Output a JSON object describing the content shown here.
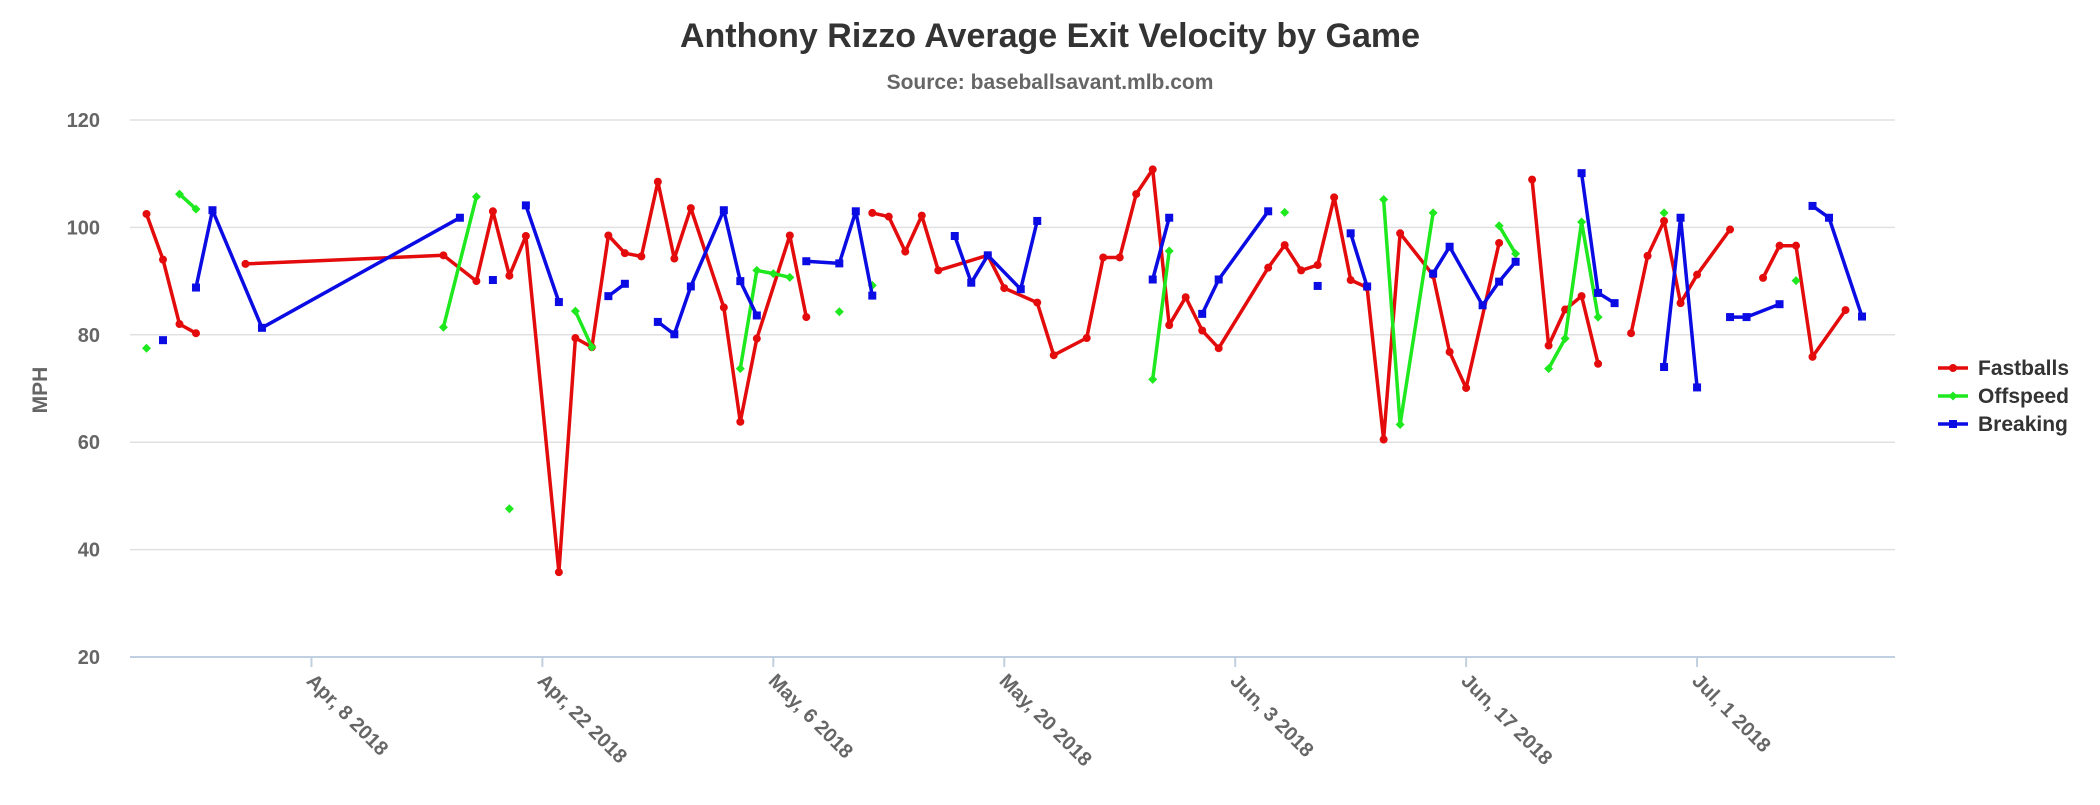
{
  "chart_data": {
    "type": "line",
    "title": "Anthony Rizzo Average Exit Velocity by Game",
    "subtitle": "Source: baseballsavant.mlb.com",
    "xlabel": "",
    "ylabel": "MPH",
    "ylim": [
      20,
      120
    ],
    "yticks": [
      20,
      40,
      60,
      80,
      100,
      120
    ],
    "xlim": [
      "2018-03-28",
      "2018-07-13"
    ],
    "xticks": [
      {
        "date": "2018-04-08",
        "label": "Apr, 8 2018"
      },
      {
        "date": "2018-04-22",
        "label": "Apr, 22 2018"
      },
      {
        "date": "2018-05-06",
        "label": "May, 6 2018"
      },
      {
        "date": "2018-05-20",
        "label": "May, 20 2018"
      },
      {
        "date": "2018-06-03",
        "label": "Jun, 3 2018"
      },
      {
        "date": "2018-06-17",
        "label": "Jun, 17 2018"
      },
      {
        "date": "2018-07-01",
        "label": "Jul, 1 2018"
      }
    ],
    "grid": true,
    "legend_position": "right",
    "series": [
      {
        "name": "Fastballs",
        "color": "#e30b0b",
        "marker": "circle",
        "points": [
          [
            "2018-03-29",
            102.5
          ],
          [
            "2018-03-30",
            94
          ],
          [
            "2018-03-31",
            82
          ],
          [
            "2018-04-01",
            80.3
          ],
          null,
          [
            "2018-04-04",
            93.2
          ],
          [
            "2018-04-16",
            94.8
          ],
          [
            "2018-04-18",
            90
          ],
          [
            "2018-04-19",
            103
          ],
          [
            "2018-04-20",
            91
          ],
          [
            "2018-04-21",
            98.4
          ],
          [
            "2018-04-23",
            35.8
          ],
          [
            "2018-04-24",
            79.4
          ],
          [
            "2018-04-25",
            77.7
          ],
          [
            "2018-04-26",
            98.5
          ],
          [
            "2018-04-27",
            95.2
          ],
          [
            "2018-04-28",
            94.6
          ],
          [
            "2018-04-29",
            108.5
          ],
          [
            "2018-04-30",
            94.2
          ],
          [
            "2018-05-01",
            103.6
          ],
          [
            "2018-05-03",
            85.1
          ],
          [
            "2018-05-04",
            63.8
          ],
          [
            "2018-05-05",
            79.3
          ],
          [
            "2018-05-07",
            98.5
          ],
          [
            "2018-05-08",
            83.3
          ],
          null,
          [
            "2018-05-12",
            102.7
          ],
          [
            "2018-05-13",
            102
          ],
          [
            "2018-05-14",
            95.5
          ],
          [
            "2018-05-15",
            102.2
          ],
          [
            "2018-05-16",
            92
          ],
          [
            "2018-05-19",
            94.8
          ],
          [
            "2018-05-20",
            88.7
          ],
          [
            "2018-05-22",
            86
          ],
          [
            "2018-05-23",
            76.2
          ],
          [
            "2018-05-25",
            79.4
          ],
          [
            "2018-05-26",
            94.4
          ],
          [
            "2018-05-27",
            94.4
          ],
          [
            "2018-05-28",
            106.2
          ],
          [
            "2018-05-29",
            110.8
          ],
          [
            "2018-05-30",
            81.8
          ],
          [
            "2018-05-31",
            87
          ],
          [
            "2018-06-01",
            80.8
          ],
          [
            "2018-06-02",
            77.5
          ],
          [
            "2018-06-05",
            92.5
          ],
          [
            "2018-06-06",
            96.7
          ],
          [
            "2018-06-07",
            92
          ],
          [
            "2018-06-08",
            93
          ],
          [
            "2018-06-09",
            105.6
          ],
          [
            "2018-06-10",
            90.2
          ],
          [
            "2018-06-11",
            88.8
          ],
          [
            "2018-06-12",
            60.5
          ],
          [
            "2018-06-13",
            98.9
          ],
          [
            "2018-06-15",
            91.1
          ],
          [
            "2018-06-16",
            76.8
          ],
          [
            "2018-06-17",
            70.1
          ],
          [
            "2018-06-19",
            97.1
          ],
          null,
          [
            "2018-06-21",
            108.9
          ],
          [
            "2018-06-22",
            78
          ],
          [
            "2018-06-23",
            84.7
          ],
          [
            "2018-06-24",
            87.2
          ],
          [
            "2018-06-25",
            74.6
          ],
          null,
          [
            "2018-06-27",
            80.3
          ],
          [
            "2018-06-28",
            94.7
          ],
          [
            "2018-06-29",
            101.2
          ],
          [
            "2018-06-30",
            85.9
          ],
          [
            "2018-07-01",
            91.2
          ],
          [
            "2018-07-03",
            99.6
          ],
          null,
          [
            "2018-07-05",
            90.6
          ],
          [
            "2018-07-06",
            96.6
          ],
          [
            "2018-07-07",
            96.6
          ],
          [
            "2018-07-08",
            75.9
          ],
          [
            "2018-07-10",
            84.6
          ]
        ]
      },
      {
        "name": "Offspeed",
        "color": "#1ee81e",
        "marker": "diamond",
        "points": [
          [
            "2018-03-29",
            77.5
          ],
          null,
          [
            "2018-03-31",
            106.2
          ],
          [
            "2018-04-01",
            103.4
          ],
          null,
          [
            "2018-04-16",
            81.4
          ],
          [
            "2018-04-18",
            105.7
          ],
          null,
          [
            "2018-04-20",
            47.6
          ],
          null,
          [
            "2018-04-24",
            84.4
          ],
          [
            "2018-04-25",
            77.7
          ],
          null,
          [
            "2018-05-04",
            73.7
          ],
          [
            "2018-05-05",
            92
          ],
          [
            "2018-05-06",
            91.4
          ],
          [
            "2018-05-07",
            90.7
          ],
          null,
          [
            "2018-05-10",
            84.3
          ],
          null,
          [
            "2018-05-12",
            89.2
          ],
          null,
          [
            "2018-05-29",
            71.7
          ],
          [
            "2018-05-30",
            95.6
          ],
          null,
          [
            "2018-06-06",
            102.8
          ],
          null,
          [
            "2018-06-12",
            105.2
          ],
          [
            "2018-06-13",
            63.3
          ],
          [
            "2018-06-15",
            102.7
          ],
          null,
          [
            "2018-06-19",
            100.3
          ],
          [
            "2018-06-20",
            95.1
          ],
          null,
          [
            "2018-06-22",
            73.7
          ],
          [
            "2018-06-23",
            79.3
          ],
          [
            "2018-06-24",
            101
          ],
          [
            "2018-06-25",
            83.3
          ],
          null,
          [
            "2018-06-29",
            102.7
          ],
          null,
          [
            "2018-07-07",
            90.1
          ]
        ]
      },
      {
        "name": "Breaking",
        "color": "#0b0be3",
        "marker": "square",
        "points": [
          [
            "2018-03-30",
            79
          ],
          null,
          [
            "2018-04-01",
            88.8
          ],
          [
            "2018-04-02",
            103.2
          ],
          [
            "2018-04-05",
            81.3
          ],
          [
            "2018-04-17",
            101.8
          ],
          null,
          [
            "2018-04-19",
            90.2
          ],
          null,
          [
            "2018-04-21",
            104.1
          ],
          [
            "2018-04-23",
            86.1
          ],
          null,
          [
            "2018-04-26",
            87.2
          ],
          [
            "2018-04-27",
            89.5
          ],
          null,
          [
            "2018-04-29",
            82.4
          ],
          [
            "2018-04-30",
            80.1
          ],
          [
            "2018-05-01",
            89
          ],
          [
            "2018-05-03",
            103.2
          ],
          [
            "2018-05-04",
            90
          ],
          [
            "2018-05-05",
            83.6
          ],
          null,
          [
            "2018-05-08",
            93.7
          ],
          [
            "2018-05-10",
            93.3
          ],
          [
            "2018-05-11",
            103
          ],
          [
            "2018-05-12",
            87.3
          ],
          null,
          [
            "2018-05-17",
            98.4
          ],
          [
            "2018-05-18",
            89.7
          ],
          [
            "2018-05-19",
            94.8
          ],
          [
            "2018-05-21",
            88.5
          ],
          [
            "2018-05-22",
            101.2
          ],
          null,
          [
            "2018-05-29",
            90.3
          ],
          [
            "2018-05-30",
            101.8
          ],
          null,
          [
            "2018-06-01",
            83.9
          ],
          [
            "2018-06-02",
            90.3
          ],
          [
            "2018-06-05",
            103
          ],
          null,
          [
            "2018-06-08",
            89.1
          ],
          null,
          [
            "2018-06-10",
            98.9
          ],
          [
            "2018-06-11",
            89
          ],
          null,
          [
            "2018-06-15",
            91.4
          ],
          [
            "2018-06-16",
            96.4
          ],
          [
            "2018-06-18",
            85.5
          ],
          [
            "2018-06-19",
            89.9
          ],
          [
            "2018-06-20",
            93.6
          ],
          null,
          [
            "2018-06-24",
            110.1
          ],
          [
            "2018-06-25",
            87.8
          ],
          [
            "2018-06-26",
            85.9
          ],
          null,
          [
            "2018-06-29",
            74
          ],
          [
            "2018-06-30",
            101.8
          ],
          [
            "2018-07-01",
            70.2
          ],
          null,
          [
            "2018-07-03",
            83.3
          ],
          [
            "2018-07-04",
            83.3
          ],
          [
            "2018-07-06",
            85.7
          ],
          null,
          [
            "2018-07-08",
            104
          ],
          [
            "2018-07-09",
            101.8
          ],
          [
            "2018-07-11",
            83.4
          ]
        ]
      }
    ]
  }
}
